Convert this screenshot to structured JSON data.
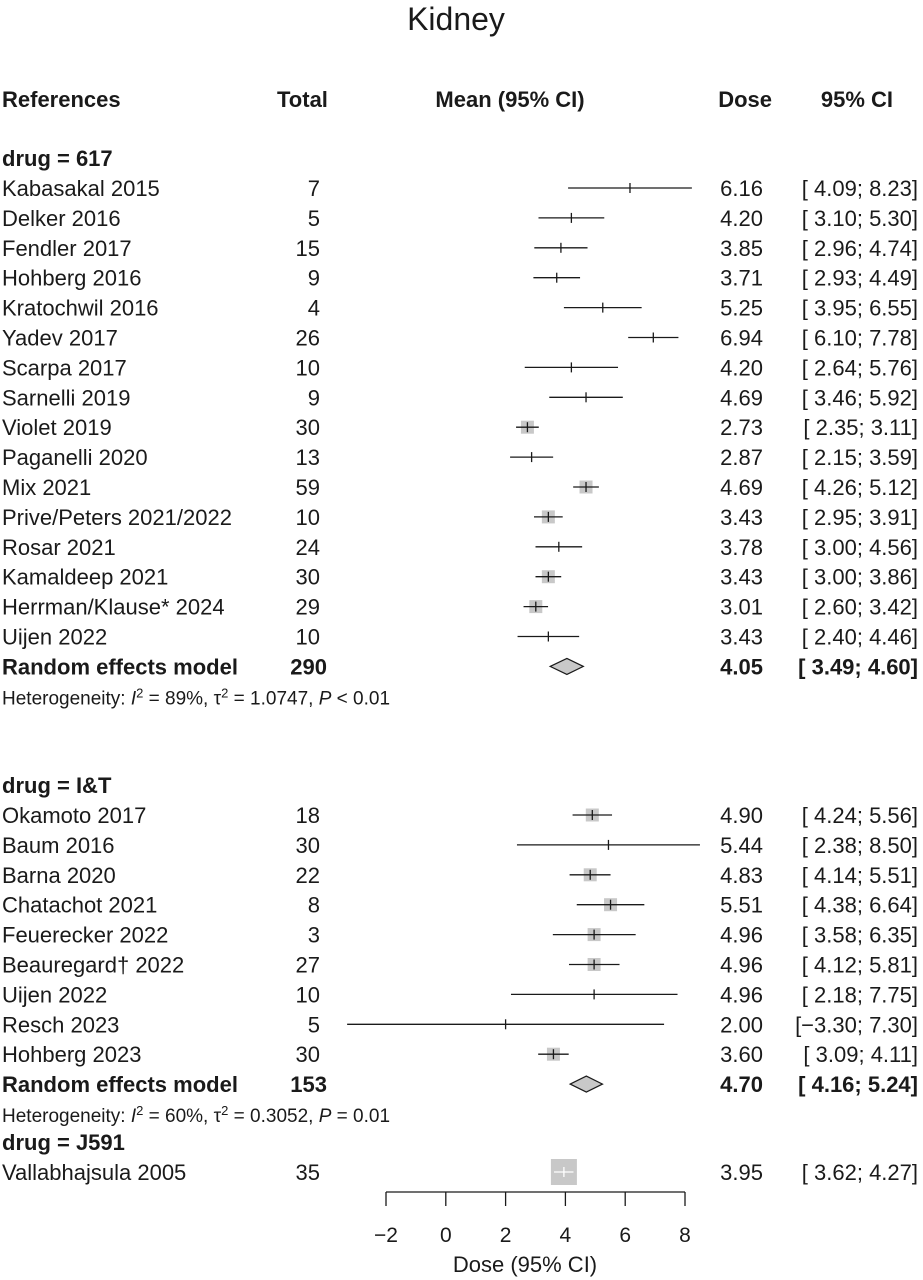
{
  "chart_data": {
    "type": "forest",
    "title": "Kidney",
    "columns": {
      "references": "References",
      "total": "Total",
      "mean": "Mean (95% CI)",
      "dose": "Dose",
      "ci": "95% CI"
    },
    "xlabel": "Dose (95% CI)",
    "xlim": [
      -2,
      8
    ],
    "xticks": [
      "−2",
      "0",
      "2",
      "4",
      "6",
      "8"
    ],
    "groups": [
      {
        "header": "drug = 617",
        "studies": [
          {
            "name": "Kabasakal 2015",
            "total": "7",
            "mean": 6.16,
            "lower": 4.09,
            "upper": 8.23,
            "dose": "6.16",
            "ci": "[ 4.09; 8.23]",
            "box": false
          },
          {
            "name": "Delker 2016",
            "total": "5",
            "mean": 4.2,
            "lower": 3.1,
            "upper": 5.3,
            "dose": "4.20",
            "ci": "[ 3.10; 5.30]",
            "box": false
          },
          {
            "name": "Fendler 2017",
            "total": "15",
            "mean": 3.85,
            "lower": 2.96,
            "upper": 4.74,
            "dose": "3.85",
            "ci": "[ 2.96; 4.74]",
            "box": false
          },
          {
            "name": "Hohberg 2016",
            "total": "9",
            "mean": 3.71,
            "lower": 2.93,
            "upper": 4.49,
            "dose": "3.71",
            "ci": "[ 2.93; 4.49]",
            "box": false
          },
          {
            "name": "Kratochwil 2016",
            "total": "4",
            "mean": 5.25,
            "lower": 3.95,
            "upper": 6.55,
            "dose": "5.25",
            "ci": "[ 3.95; 6.55]",
            "box": false
          },
          {
            "name": "Yadev 2017",
            "total": "26",
            "mean": 6.94,
            "lower": 6.1,
            "upper": 7.78,
            "dose": "6.94",
            "ci": "[ 6.10; 7.78]",
            "box": false
          },
          {
            "name": "Scarpa 2017",
            "total": "10",
            "mean": 4.2,
            "lower": 2.64,
            "upper": 5.76,
            "dose": "4.20",
            "ci": "[ 2.64; 5.76]",
            "box": false
          },
          {
            "name": "Sarnelli 2019",
            "total": "9",
            "mean": 4.69,
            "lower": 3.46,
            "upper": 5.92,
            "dose": "4.69",
            "ci": "[ 3.46; 5.92]",
            "box": false
          },
          {
            "name": "Violet 2019",
            "total": "30",
            "mean": 2.73,
            "lower": 2.35,
            "upper": 3.11,
            "dose": "2.73",
            "ci": "[ 2.35; 3.11]",
            "box": true
          },
          {
            "name": "Paganelli 2020",
            "total": "13",
            "mean": 2.87,
            "lower": 2.15,
            "upper": 3.59,
            "dose": "2.87",
            "ci": "[ 2.15; 3.59]",
            "box": false
          },
          {
            "name": "Mix 2021",
            "total": "59",
            "mean": 4.69,
            "lower": 4.26,
            "upper": 5.12,
            "dose": "4.69",
            "ci": "[ 4.26; 5.12]",
            "box": true
          },
          {
            "name": "Prive/Peters 2021/2022",
            "total": "10",
            "mean": 3.43,
            "lower": 2.95,
            "upper": 3.91,
            "dose": "3.43",
            "ci": "[ 2.95; 3.91]",
            "box": true
          },
          {
            "name": "Rosar 2021",
            "total": "24",
            "mean": 3.78,
            "lower": 3.0,
            "upper": 4.56,
            "dose": "3.78",
            "ci": "[ 3.00; 4.56]",
            "box": false
          },
          {
            "name": "Kamaldeep 2021",
            "total": "30",
            "mean": 3.43,
            "lower": 3.0,
            "upper": 3.86,
            "dose": "3.43",
            "ci": "[ 3.00; 3.86]",
            "box": true
          },
          {
            "name": "Herrman/Klause* 2024",
            "total": "29",
            "mean": 3.01,
            "lower": 2.6,
            "upper": 3.42,
            "dose": "3.01",
            "ci": "[ 2.60; 3.42]",
            "box": true
          },
          {
            "name": "Uijen 2022",
            "total": "10",
            "mean": 3.43,
            "lower": 2.4,
            "upper": 4.46,
            "dose": "3.43",
            "ci": "[ 2.40; 4.46]",
            "box": false
          }
        ],
        "summary": {
          "label": "Random effects model",
          "total": "290",
          "mean": 4.05,
          "lower": 3.49,
          "upper": 4.6,
          "dose": "4.05",
          "ci": "[ 3.49; 4.60]"
        },
        "heterogeneity": {
          "prefix": "Heterogeneity: ",
          "i2": "I",
          "i2_sup": "2",
          "i2_val": " = 89%, ",
          "tau": "τ",
          "tau_sup": "2",
          "tau_val": " = 1.0747, ",
          "p": "P",
          "p_val": " < 0.01"
        }
      },
      {
        "header": "drug = I&T",
        "studies": [
          {
            "name": "Okamoto 2017",
            "total": "18",
            "mean": 4.9,
            "lower": 4.24,
            "upper": 5.56,
            "dose": "4.90",
            "ci": "[ 4.24; 5.56]",
            "box": true
          },
          {
            "name": "Baum 2016",
            "total": "30",
            "mean": 5.44,
            "lower": 2.38,
            "upper": 8.5,
            "dose": "5.44",
            "ci": "[ 2.38; 8.50]",
            "box": false
          },
          {
            "name": "Barna 2020",
            "total": "22",
            "mean": 4.83,
            "lower": 4.14,
            "upper": 5.51,
            "dose": "4.83",
            "ci": "[ 4.14; 5.51]",
            "box": true
          },
          {
            "name": "Chatachot 2021",
            "total": "8",
            "mean": 5.51,
            "lower": 4.38,
            "upper": 6.64,
            "dose": "5.51",
            "ci": "[ 4.38; 6.64]",
            "box": true
          },
          {
            "name": "Feuerecker 2022",
            "total": "3",
            "mean": 4.96,
            "lower": 3.58,
            "upper": 6.35,
            "dose": "4.96",
            "ci": "[ 3.58; 6.35]",
            "box": true
          },
          {
            "name": "Beauregard† 2022",
            "total": "27",
            "mean": 4.96,
            "lower": 4.12,
            "upper": 5.81,
            "dose": "4.96",
            "ci": "[ 4.12; 5.81]",
            "box": true
          },
          {
            "name": "Uijen 2022",
            "total": "10",
            "mean": 4.96,
            "lower": 2.18,
            "upper": 7.75,
            "dose": "4.96",
            "ci": "[ 2.18; 7.75]",
            "box": false
          },
          {
            "name": "Resch 2023",
            "total": "5",
            "mean": 2.0,
            "lower": -3.3,
            "upper": 7.3,
            "dose": "2.00",
            "ci": "[−3.30; 7.30]",
            "box": false
          },
          {
            "name": "Hohberg 2023",
            "total": "30",
            "mean": 3.6,
            "lower": 3.09,
            "upper": 4.11,
            "dose": "3.60",
            "ci": "[ 3.09; 4.11]",
            "box": true
          }
        ],
        "summary": {
          "label": "Random effects model",
          "total": "153",
          "mean": 4.7,
          "lower": 4.16,
          "upper": 5.24,
          "dose": "4.70",
          "ci": "[ 4.16; 5.24]"
        },
        "heterogeneity": {
          "prefix": "Heterogeneity: ",
          "i2": "I",
          "i2_sup": "2",
          "i2_val": " = 60%, ",
          "tau": "τ",
          "tau_sup": "2",
          "tau_val": " = 0.3052, ",
          "p": "P",
          "p_val": " = 0.01"
        }
      },
      {
        "header": "drug = J591",
        "studies": [
          {
            "name": "Vallabhajsula 2005",
            "total": "35",
            "mean": 3.95,
            "lower": 3.62,
            "upper": 4.27,
            "dose": "3.95",
            "ci": "[ 3.62; 4.27]",
            "box": true,
            "big": true
          }
        ]
      }
    ],
    "colors": {
      "line": "#1a1a1a",
      "box": "#c8c8c8",
      "diamond": "#c8c8c8"
    }
  }
}
